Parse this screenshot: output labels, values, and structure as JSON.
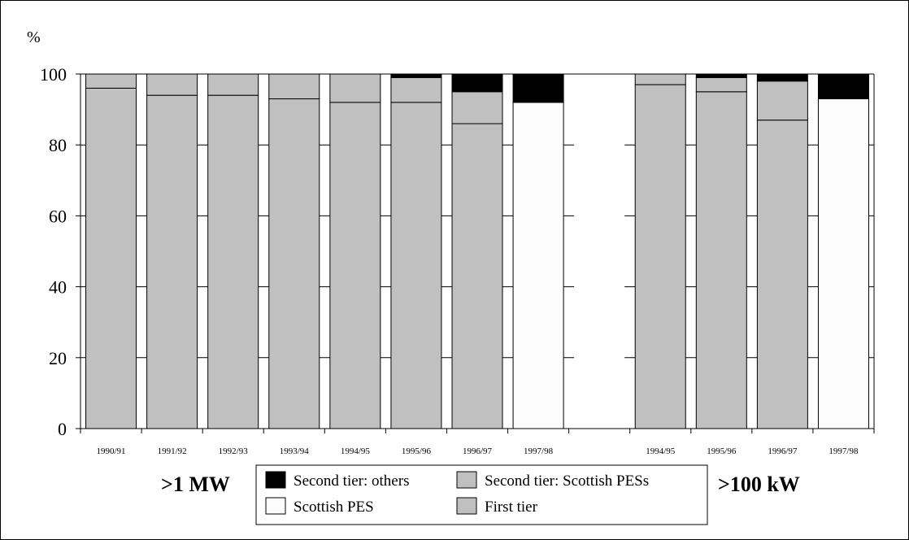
{
  "chart_data": {
    "type": "bar",
    "stacked": true,
    "y_unit_label": "%",
    "ylim": [
      0,
      100
    ],
    "y_ticks": [
      0,
      20,
      40,
      60,
      80,
      100
    ],
    "grid": "horizontal",
    "categories": [
      "1990/91",
      "1991/92",
      "1992/93",
      "1993/94",
      "1994/95",
      "1995/96",
      "1996/97",
      "1997/98",
      "",
      "1994/95",
      "1995/96",
      "1996/97",
      "1997/98"
    ],
    "groups": [
      {
        "label": ">1 MW",
        "categories": [
          "1990/91",
          "1991/92",
          "1992/93",
          "1993/94",
          "1994/95",
          "1995/96",
          "1996/97",
          "1997/98"
        ]
      },
      {
        "label": ">100 kW",
        "categories": [
          "1994/95",
          "1995/96",
          "1996/97",
          "1997/98"
        ]
      }
    ],
    "series": [
      {
        "name": "First tier",
        "color": "#c0c0c0",
        "values": [
          96,
          94,
          94,
          93,
          92,
          92,
          86,
          0,
          0,
          97,
          95,
          87,
          0
        ]
      },
      {
        "name": "Scottish PES",
        "color": "#fcfcfc",
        "values": [
          0,
          0,
          0,
          0,
          0,
          0,
          0,
          92,
          0,
          0,
          0,
          0,
          93
        ]
      },
      {
        "name": "Second tier: Scottish PESs",
        "color": "#c0c0c0",
        "values": [
          4,
          6,
          6,
          7,
          8,
          7,
          9,
          0,
          0,
          3,
          4,
          11,
          0
        ]
      },
      {
        "name": "Second tier: others",
        "color": "#000000",
        "values": [
          0,
          0,
          0,
          0,
          0,
          1,
          5,
          8,
          0,
          0,
          1,
          2,
          7
        ]
      }
    ],
    "legend": {
      "placement": "bottom-center",
      "entries": [
        {
          "name": "Second tier: others",
          "color": "#000000"
        },
        {
          "name": "Second tier: Scottish PESs",
          "color": "#c0c0c0"
        },
        {
          "name": "Scottish PES",
          "color": "#fcfcfc"
        },
        {
          "name": "First tier",
          "color": "#c0c0c0"
        }
      ]
    }
  }
}
